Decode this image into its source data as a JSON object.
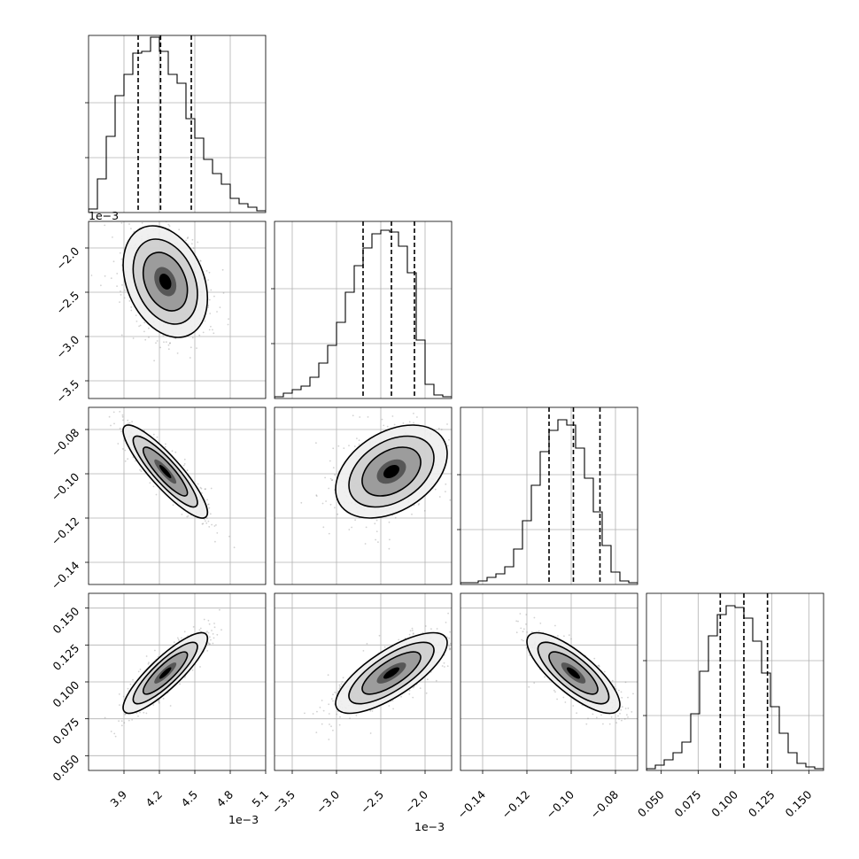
{
  "chart_data": {
    "type": "corner",
    "grid": true,
    "parameters": [
      {
        "range": [
          3.6,
          5.1
        ],
        "ticks": [
          3.9,
          4.2,
          4.5,
          4.8,
          5.1
        ],
        "tick_labels": [
          "3.9",
          "4.2",
          "4.5",
          "4.8",
          "5.1"
        ],
        "offset_label": "1e−3",
        "median": 4.21,
        "lower": 4.02,
        "upper": 4.47,
        "hist": [
          0.02,
          0.19,
          0.43,
          0.66,
          0.78,
          0.9,
          0.91,
          0.99,
          0.91,
          0.78,
          0.73,
          0.53,
          0.42,
          0.3,
          0.22,
          0.16,
          0.08,
          0.05,
          0.03,
          0.01
        ]
      },
      {
        "range": [
          -3.7,
          -1.7
        ],
        "ticks": [
          -3.5,
          -3.0,
          -2.5,
          -2.0
        ],
        "tick_labels": [
          "−3.5",
          "−3.0",
          "−2.5",
          "−2.0"
        ],
        "offset_label": "1e−3",
        "median": -2.38,
        "lower": -2.7,
        "upper": -2.12,
        "hist": [
          0.01,
          0.03,
          0.05,
          0.07,
          0.12,
          0.2,
          0.3,
          0.43,
          0.6,
          0.75,
          0.85,
          0.93,
          0.95,
          0.94,
          0.86,
          0.71,
          0.33,
          0.08,
          0.02,
          0.01
        ]
      },
      {
        "range": [
          -0.15,
          -0.07
        ],
        "ticks": [
          -0.14,
          -0.12,
          -0.1,
          -0.08
        ],
        "tick_labels": [
          "−0.14",
          "−0.12",
          "−0.10",
          "−0.08"
        ],
        "median": -0.099,
        "lower": -0.11,
        "upper": -0.087,
        "hist": [
          0.01,
          0.01,
          0.02,
          0.04,
          0.06,
          0.1,
          0.2,
          0.36,
          0.56,
          0.75,
          0.87,
          0.93,
          0.9,
          0.77,
          0.6,
          0.41,
          0.22,
          0.07,
          0.02,
          0.01
        ]
      },
      {
        "range": [
          0.04,
          0.16
        ],
        "ticks": [
          0.05,
          0.075,
          0.1,
          0.125,
          0.15
        ],
        "tick_labels": [
          "0.050",
          "0.075",
          "0.100",
          "0.125",
          "0.150"
        ],
        "median": 0.106,
        "lower": 0.09,
        "upper": 0.122,
        "hist": [
          0.01,
          0.03,
          0.06,
          0.1,
          0.16,
          0.32,
          0.56,
          0.76,
          0.88,
          0.93,
          0.92,
          0.86,
          0.73,
          0.55,
          0.36,
          0.21,
          0.1,
          0.04,
          0.02,
          0.01
        ]
      }
    ],
    "pairs": [
      {
        "row": 1,
        "col": 0,
        "mean": [
          4.25,
          -2.38
        ],
        "sd": [
          0.17,
          0.3
        ],
        "corr": -0.3
      },
      {
        "row": 2,
        "col": 0,
        "mean": [
          4.25,
          -0.099
        ],
        "sd": [
          0.17,
          0.01
        ],
        "corr": -0.88
      },
      {
        "row": 2,
        "col": 1,
        "mean": [
          -2.38,
          -0.099
        ],
        "sd": [
          0.3,
          0.01
        ],
        "corr": 0.38
      },
      {
        "row": 3,
        "col": 0,
        "mean": [
          4.25,
          0.106
        ],
        "sd": [
          0.17,
          0.013
        ],
        "corr": 0.86
      },
      {
        "row": 3,
        "col": 1,
        "mean": [
          -2.38,
          0.106
        ],
        "sd": [
          0.3,
          0.013
        ],
        "corr": 0.75
      },
      {
        "row": 3,
        "col": 2,
        "mean": [
          -0.099,
          0.106
        ],
        "sd": [
          0.01,
          0.013
        ],
        "corr": -0.78
      }
    ]
  }
}
